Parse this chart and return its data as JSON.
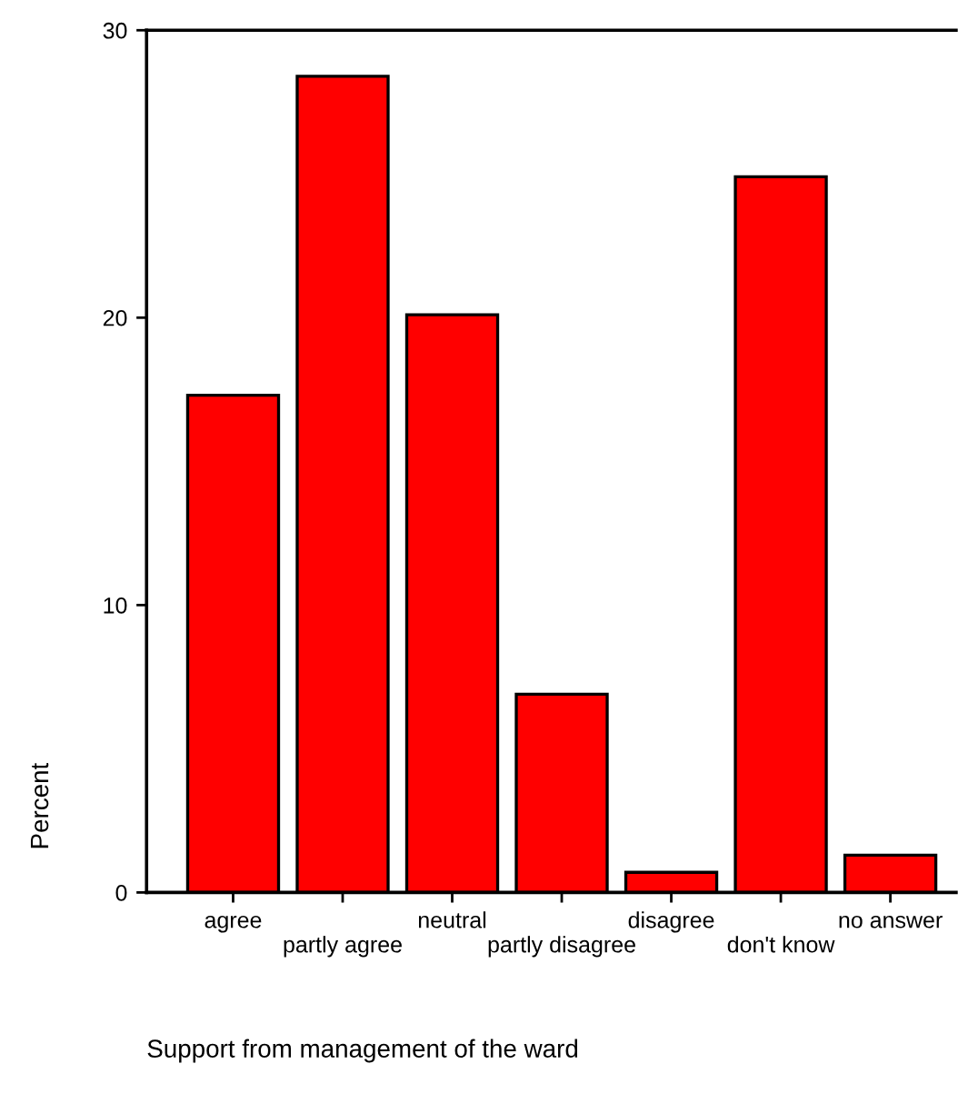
{
  "chart_data": {
    "type": "bar",
    "xlabel": "Support from management of the ward",
    "ylabel": "Percent",
    "categories": [
      "agree",
      "partly agree",
      "neutral",
      "partly disagree",
      "disagree",
      "don't know",
      "no answer"
    ],
    "values": [
      17.3,
      28.4,
      20.1,
      6.9,
      0.7,
      24.9,
      1.3
    ],
    "color": "#ff0000",
    "ylim": [
      0,
      30
    ],
    "yticks": [
      0,
      10,
      20,
      30
    ],
    "grid": false,
    "legend": false
  }
}
